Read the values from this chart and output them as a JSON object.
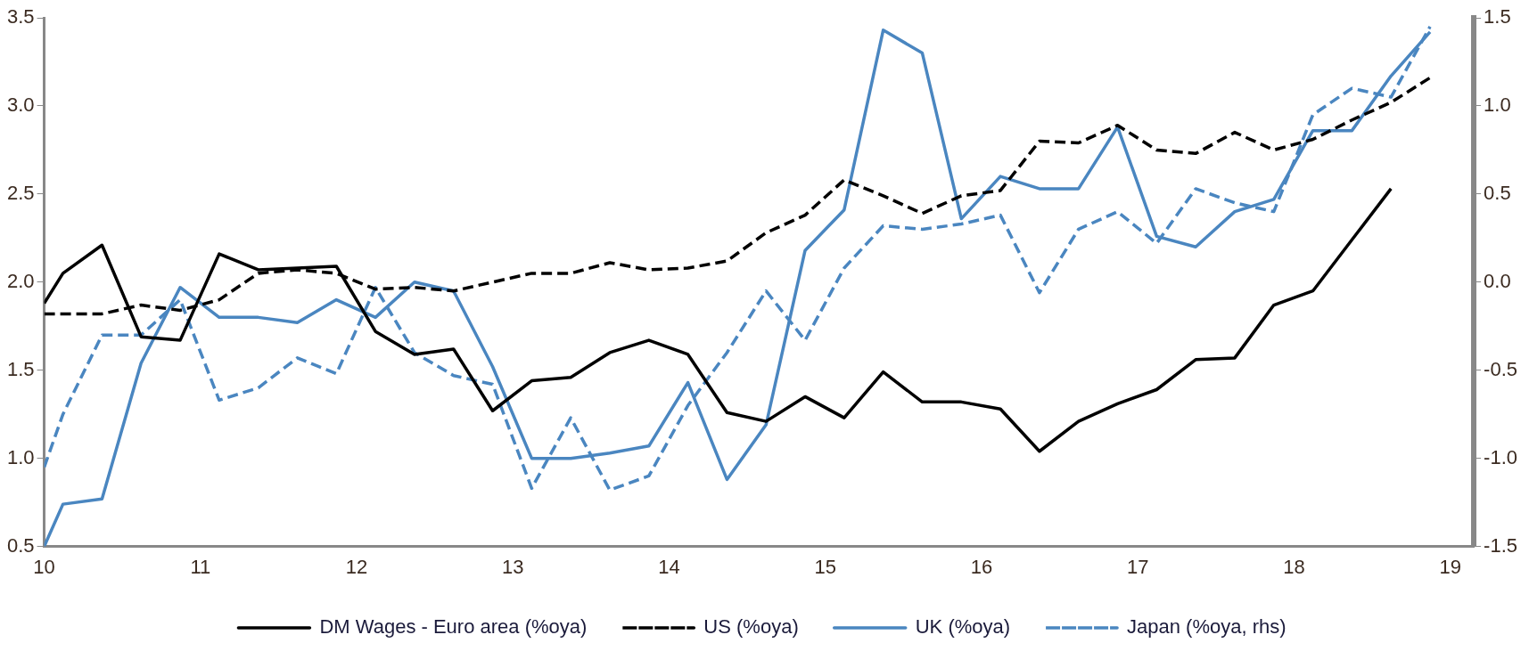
{
  "chart_data": {
    "type": "line",
    "legend": "bottom",
    "grid": false,
    "marker": "none",
    "xlim": [
      10,
      19.15
    ],
    "xticks": [
      10,
      11,
      12,
      13,
      14,
      15,
      16,
      17,
      18,
      19
    ],
    "ylim": [
      0.5,
      3.5
    ],
    "yticks": [
      0.5,
      {
        "value": 1,
        "label": "1.0"
      },
      1.5,
      {
        "value": 2,
        "label": "2.0"
      },
      2.5,
      {
        "value": 3,
        "label": "3.0"
      },
      3.5
    ],
    "y2lim": [
      -1.5,
      1.5
    ],
    "y2ticks": [
      -1.5,
      {
        "value": -1,
        "label": "-1.0"
      },
      -0.5,
      {
        "value": 0,
        "label": "0.0"
      },
      0.5,
      {
        "value": 1,
        "label": "1.0"
      },
      1.5
    ],
    "series": [
      {
        "name": "DM Wages - Euro area (%oya)",
        "color": "#000000",
        "line_style": "solid",
        "x": [
          10,
          10.12,
          10.37,
          10.62,
          10.87,
          11.12,
          11.37,
          11.62,
          11.87,
          12.12,
          12.37,
          12.62,
          12.87,
          13.12,
          13.37,
          13.62,
          13.87,
          14.12,
          14.37,
          14.62,
          14.87,
          15.12,
          15.37,
          15.62,
          15.87,
          16.12,
          16.37,
          16.62,
          16.87,
          17.12,
          17.37,
          17.62,
          17.87,
          18.12,
          18.37,
          18.62
        ],
        "values": [
          1.88,
          2.05,
          2.21,
          1.69,
          1.67,
          2.16,
          2.07,
          2.08,
          2.09,
          1.72,
          1.59,
          1.62,
          1.27,
          1.44,
          1.46,
          1.6,
          1.67,
          1.59,
          1.26,
          1.21,
          1.35,
          1.23,
          1.49,
          1.32,
          1.32,
          1.28,
          1.04,
          1.21,
          1.31,
          1.39,
          1.56,
          1.57,
          1.87,
          1.95,
          2.24,
          2.53
        ]
      },
      {
        "name": "US (%oya)",
        "color": "#000000",
        "line_style": "dashed",
        "x": [
          10,
          10.37,
          10.62,
          10.87,
          11.12,
          11.37,
          11.62,
          11.87,
          12.12,
          12.37,
          12.62,
          12.87,
          13.12,
          13.37,
          13.62,
          13.87,
          14.12,
          14.37,
          14.62,
          14.87,
          15.12,
          15.37,
          15.62,
          15.87,
          16.12,
          16.37,
          16.62,
          16.87,
          17.12,
          17.37,
          17.62,
          17.87,
          18.12,
          18.37,
          18.62,
          18.87
        ],
        "values": [
          1.82,
          1.82,
          1.87,
          1.84,
          1.9,
          2.05,
          2.07,
          2.05,
          1.96,
          1.97,
          1.95,
          2.0,
          2.05,
          2.05,
          2.11,
          2.07,
          2.08,
          2.12,
          2.28,
          2.38,
          2.58,
          2.49,
          2.39,
          2.49,
          2.52,
          2.8,
          2.79,
          2.89,
          2.75,
          2.73,
          2.85,
          2.75,
          2.81,
          2.92,
          3.02,
          3.16
        ]
      },
      {
        "name": "UK (%oya)",
        "color": "#4a86c0",
        "line_style": "solid",
        "x": [
          10,
          10.12,
          10.37,
          10.62,
          10.87,
          11.12,
          11.37,
          11.62,
          11.87,
          12.12,
          12.37,
          12.62,
          12.87,
          13.12,
          13.37,
          13.62,
          13.87,
          14.12,
          14.37,
          14.62,
          14.87,
          15.12,
          15.37,
          15.62,
          15.87,
          16.12,
          16.37,
          16.62,
          16.87,
          17.12,
          17.37,
          17.62,
          17.87,
          18.12,
          18.37,
          18.62,
          18.87
        ],
        "values": [
          0.5,
          0.74,
          0.77,
          1.54,
          1.97,
          1.8,
          1.8,
          1.77,
          1.9,
          1.8,
          2.0,
          1.95,
          1.52,
          1.0,
          1.0,
          1.03,
          1.07,
          1.43,
          0.88,
          1.19,
          2.18,
          2.41,
          3.43,
          3.3,
          2.36,
          2.6,
          2.53,
          2.53,
          2.88,
          2.26,
          2.2,
          2.4,
          2.47,
          2.86,
          2.86,
          3.17,
          3.42
        ]
      },
      {
        "name": "Japan (%oya, rhs)",
        "color": "#4a86c0",
        "line_style": "dashed",
        "axis": "y2",
        "x": [
          10,
          10.12,
          10.37,
          10.62,
          10.87,
          11.12,
          11.37,
          11.62,
          11.87,
          12.12,
          12.37,
          12.62,
          12.87,
          13.12,
          13.37,
          13.62,
          13.87,
          14.12,
          14.37,
          14.62,
          14.87,
          15.12,
          15.37,
          15.62,
          15.87,
          16.12,
          16.37,
          16.62,
          16.87,
          17.12,
          17.37,
          17.62,
          17.87,
          18.12,
          18.37,
          18.62,
          18.87
        ],
        "values": [
          -1.05,
          -0.75,
          -0.3,
          -0.3,
          -0.1,
          -0.67,
          -0.6,
          -0.43,
          -0.52,
          -0.03,
          -0.4,
          -0.53,
          -0.58,
          -1.17,
          -0.77,
          -1.18,
          -1.1,
          -0.7,
          -0.4,
          -0.05,
          -0.33,
          0.08,
          0.32,
          0.3,
          0.33,
          0.38,
          -0.06,
          0.3,
          0.4,
          0.22,
          0.53,
          0.45,
          0.4,
          0.95,
          1.1,
          1.05,
          1.45
        ]
      }
    ]
  }
}
